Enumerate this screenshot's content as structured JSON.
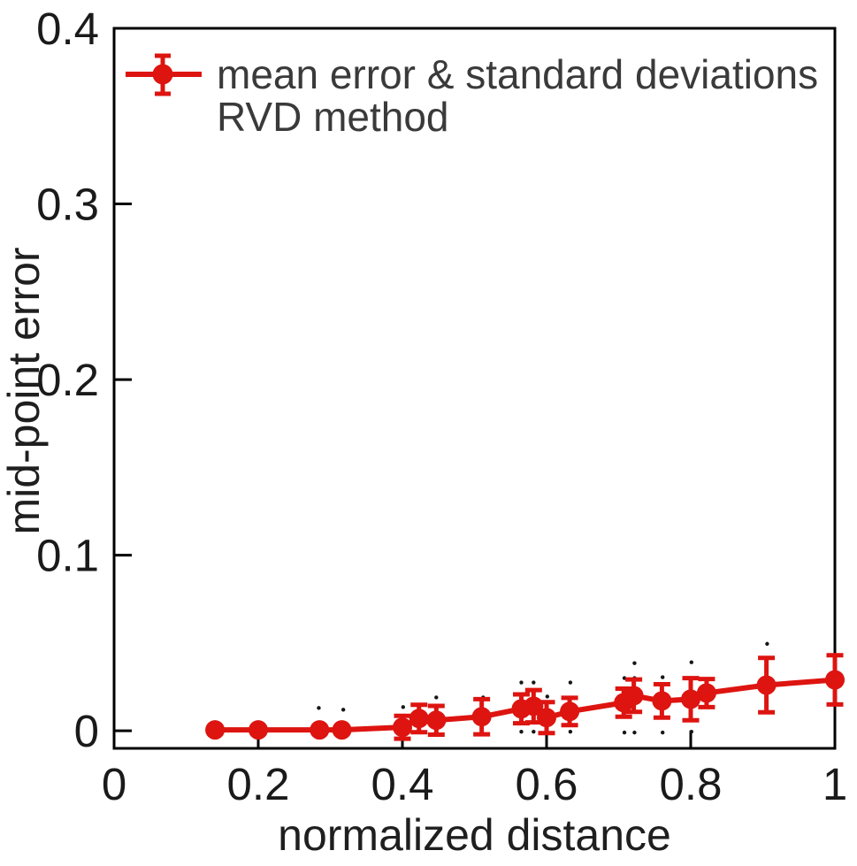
{
  "legend": {
    "line1": "mean error & standard deviations",
    "line2": "RVD method"
  },
  "colors": {
    "series": "#dd1410",
    "axis": "#000000",
    "tick_text": "#1a1a1a",
    "legend_text": "#3a3a3a",
    "outlier": "#161616"
  },
  "chart_data": {
    "type": "line",
    "title": "",
    "xlabel": "normalized distance",
    "ylabel": "mid-point error",
    "xlim": [
      0,
      1
    ],
    "ylim": [
      -0.01,
      0.4
    ],
    "grid": false,
    "legend_position": "upper-left",
    "xticks": {
      "values": [
        0,
        0.2,
        0.4,
        0.6,
        0.8,
        1
      ],
      "labels": [
        "0",
        "0.2",
        "0.4",
        "0.6",
        "0.8",
        "1"
      ]
    },
    "yticks": {
      "values": [
        0,
        0.1,
        0.2,
        0.3,
        0.4
      ],
      "labels": [
        "0",
        "0.1",
        "0.2",
        "0.3",
        "0.4"
      ]
    },
    "series": [
      {
        "name": "mean error & standard deviations RVD method",
        "marker": "circle",
        "x": [
          0.14,
          0.2,
          0.285,
          0.316,
          0.4,
          0.423,
          0.447,
          0.51,
          0.565,
          0.582,
          0.6,
          0.632,
          0.707,
          0.721,
          0.76,
          0.8,
          0.822,
          0.905,
          1.0
        ],
        "y": [
          0.0005,
          0.0005,
          0.0005,
          0.0005,
          0.002,
          0.007,
          0.006,
          0.008,
          0.0125,
          0.014,
          0.0075,
          0.011,
          0.016,
          0.02,
          0.017,
          0.018,
          0.0215,
          0.026,
          0.029
        ],
        "yerr": [
          0,
          0,
          0,
          0,
          0.0065,
          0.0078,
          0.0082,
          0.01,
          0.0082,
          0.0092,
          0.0088,
          0.0078,
          0.008,
          0.0092,
          0.0095,
          0.012,
          0.008,
          0.0155,
          0.014
        ]
      }
    ],
    "outlier_points": [
      [
        0.284,
        0.013
      ],
      [
        0.318,
        0.012
      ],
      [
        0.401,
        0.0135
      ],
      [
        0.447,
        0.019
      ],
      [
        0.512,
        0.019
      ],
      [
        0.565,
        0.0275
      ],
      [
        0.582,
        0.0275
      ],
      [
        0.601,
        0.0195
      ],
      [
        0.633,
        0.0275
      ],
      [
        0.708,
        0.03
      ],
      [
        0.722,
        0.0385
      ],
      [
        0.722,
        0.03
      ],
      [
        0.761,
        0.0305
      ],
      [
        0.801,
        0.039
      ],
      [
        0.906,
        0.0495
      ],
      [
        0.565,
        -0.0005
      ],
      [
        0.582,
        -0.0005
      ],
      [
        0.633,
        -0.0005
      ],
      [
        0.708,
        -0.001
      ],
      [
        0.722,
        -0.001
      ],
      [
        0.761,
        -0.001
      ],
      [
        0.801,
        -0.0005
      ]
    ]
  }
}
